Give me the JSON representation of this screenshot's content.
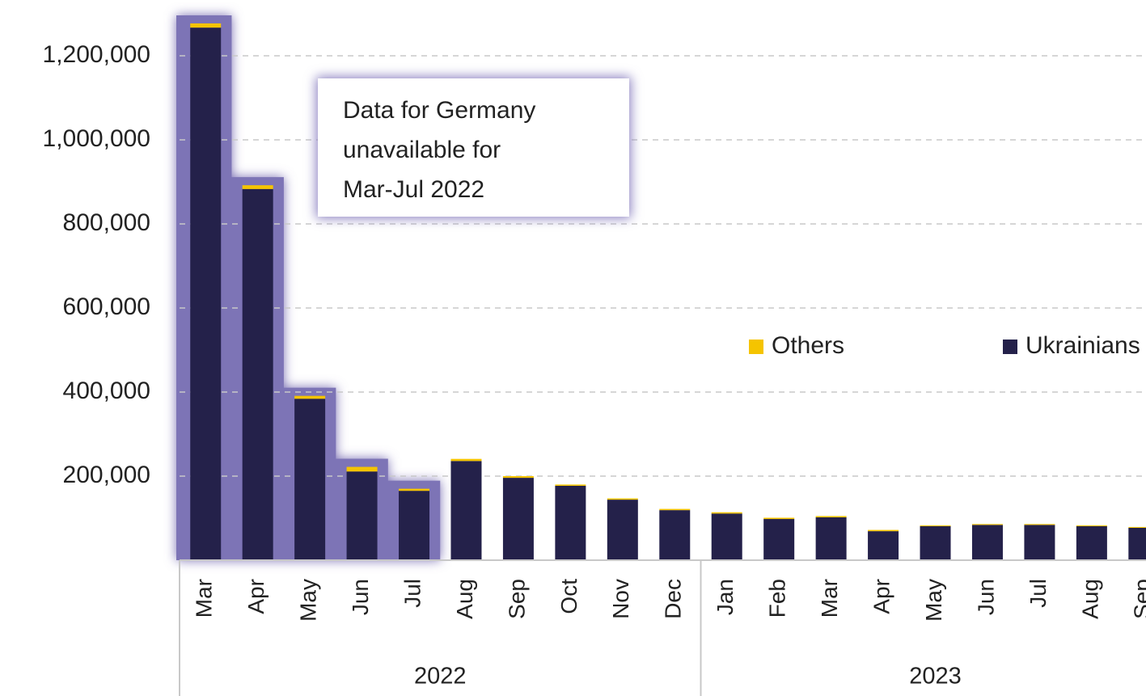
{
  "chart_data": {
    "type": "stacked-bar",
    "annotation": [
      "Data for Germany",
      "unavailable for",
      "Mar-Jul 2022"
    ],
    "categories": [
      "Mar",
      "Apr",
      "May",
      "Jun",
      "Jul",
      "Aug",
      "Sep",
      "Oct",
      "Nov",
      "Dec",
      "Jan",
      "Feb",
      "Mar",
      "Apr",
      "May",
      "Jun",
      "Jul",
      "Aug",
      "Sep"
    ],
    "category_groups": [
      {
        "label": "2022",
        "size": 10
      },
      {
        "label": "2023",
        "size": 9
      }
    ],
    "series": [
      {
        "name": "Ukrainians",
        "color": "#24214a",
        "values": [
          1267000,
          883000,
          384000,
          211000,
          165000,
          236000,
          196000,
          177000,
          144000,
          119000,
          111000,
          98000,
          102000,
          69000,
          81000,
          84000,
          84000,
          81000,
          77000
        ]
      },
      {
        "name": "Others",
        "color": "#f5c400",
        "values": [
          10000,
          9000,
          7000,
          11000,
          5000,
          5000,
          4000,
          3000,
          3000,
          3000,
          3000,
          3000,
          3000,
          3000,
          2000,
          2000,
          2000,
          2000,
          2000
        ]
      }
    ],
    "ylim": [
      0,
      1300000
    ],
    "yticks": [
      {
        "value": 200000,
        "label": "200,000"
      },
      {
        "value": 400000,
        "label": "400,000"
      },
      {
        "value": 600000,
        "label": "600,000"
      },
      {
        "value": 800000,
        "label": "800,000"
      },
      {
        "value": 1000000,
        "label": "1,000,000"
      },
      {
        "value": 1200000,
        "label": "1,200,000"
      }
    ],
    "grid": true
  }
}
